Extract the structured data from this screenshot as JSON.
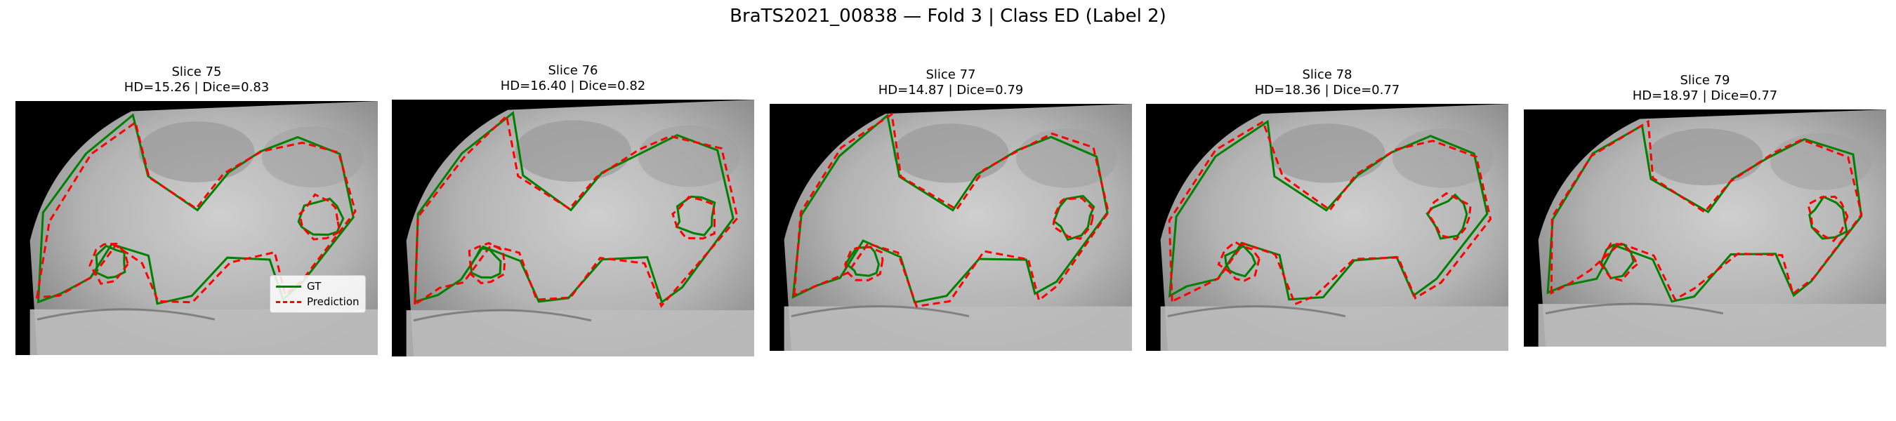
{
  "figure": {
    "title": "BraTS2021_00838 — Fold 3 | Class ED (Label 2)"
  },
  "legend": {
    "gt_label": "GT",
    "prediction_label": "Prediction"
  },
  "colors": {
    "gt": "#008000",
    "prediction": "#ff0000",
    "background": "#000000"
  },
  "panels": [
    {
      "slice_label": "Slice 75",
      "metrics": "HD=15.26 | Dice=0.83",
      "hd": 15.26,
      "dice": 0.83
    },
    {
      "slice_label": "Slice 76",
      "metrics": "HD=16.40 | Dice=0.82",
      "hd": 16.4,
      "dice": 0.82
    },
    {
      "slice_label": "Slice 77",
      "metrics": "HD=14.87 | Dice=0.79",
      "hd": 14.87,
      "dice": 0.79
    },
    {
      "slice_label": "Slice 78",
      "metrics": "HD=18.36 | Dice=0.77",
      "hd": 18.36,
      "dice": 0.77
    },
    {
      "slice_label": "Slice 79",
      "metrics": "HD=18.97 | Dice=0.77",
      "hd": 18.97,
      "dice": 0.77
    }
  ]
}
